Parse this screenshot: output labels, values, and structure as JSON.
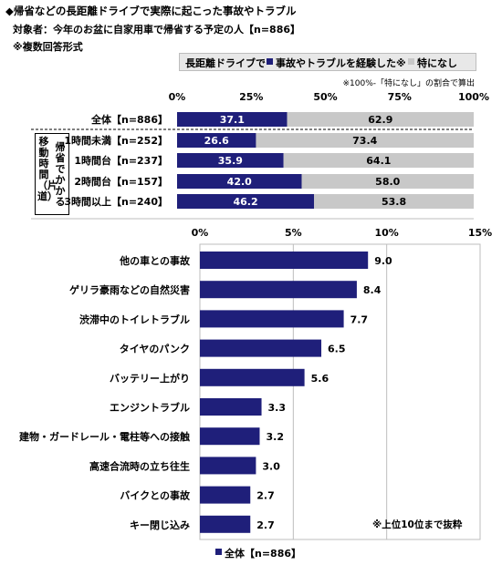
{
  "header": {
    "title": "◆帰省などの長距離ドライブで実際に起こった事故やトラブル",
    "subject": "対象者：今年のお盆に自家用車で帰省する予定の人【n=886】",
    "note": "※複数回答形式"
  },
  "legend_top": {
    "heading": "長距離ドライブで",
    "items": [
      "事故やトラブルを経験した※",
      "特になし"
    ]
  },
  "ratio_note": "※100%-「特になし」の割合で算出",
  "group_label": {
    "outer": "移動時間（片道）",
    "inner": "帰省でかかる"
  },
  "colors": {
    "navy": "#1f1f7a",
    "gray": "#c8c8c8",
    "grid": "#bdbdbd",
    "white": "#ffffff"
  },
  "footnote_top10": "※上位10位まで抜粋",
  "legend_bottom": "全体【n=886】",
  "chart_data": [
    {
      "type": "bar",
      "orientation": "horizontal",
      "stacked": true,
      "categories": [
        "全体【n=886】",
        "1時間未満【n=252】",
        "1時間台【n=237】",
        "2時間台【n=157】",
        "3時間以上【n=240】"
      ],
      "series": [
        {
          "name": "事故やトラブルを経験した※",
          "values": [
            37.1,
            26.6,
            35.9,
            42.0,
            46.2
          ],
          "labels": [
            "37.1",
            "26.6",
            "35.9",
            "42.0",
            "46.2"
          ]
        },
        {
          "name": "特になし",
          "values": [
            62.9,
            73.4,
            64.1,
            58.0,
            53.8
          ],
          "labels": [
            "62.9",
            "73.4",
            "64.1",
            "58.0",
            "53.8"
          ]
        }
      ],
      "xlim": [
        0,
        100
      ],
      "ticks": [
        "0%",
        "25%",
        "50%",
        "75%",
        "100%"
      ],
      "legend": "top"
    },
    {
      "type": "bar",
      "orientation": "horizontal",
      "categories": [
        "他の車との事故",
        "ゲリラ豪雨などの自然災害",
        "渋滞中のトイレトラブル",
        "タイヤのパンク",
        "バッテリー上がり",
        "エンジントラブル",
        "建物・ガードレール・電柱等への接触",
        "高速合流時の立ち往生",
        "バイクとの事故",
        "キー閉じ込み"
      ],
      "series": [
        {
          "name": "全体【n=886】",
          "values": [
            9.0,
            8.4,
            7.7,
            6.5,
            5.6,
            3.3,
            3.2,
            3.0,
            2.7,
            2.7
          ],
          "labels": [
            "9.0",
            "8.4",
            "7.7",
            "6.5",
            "5.6",
            "3.3",
            "3.2",
            "3.0",
            "2.7",
            "2.7"
          ]
        }
      ],
      "xlim": [
        0,
        15
      ],
      "ticks": [
        "0%",
        "5%",
        "10%",
        "15%"
      ],
      "grid": true,
      "legend": "bottom"
    }
  ]
}
